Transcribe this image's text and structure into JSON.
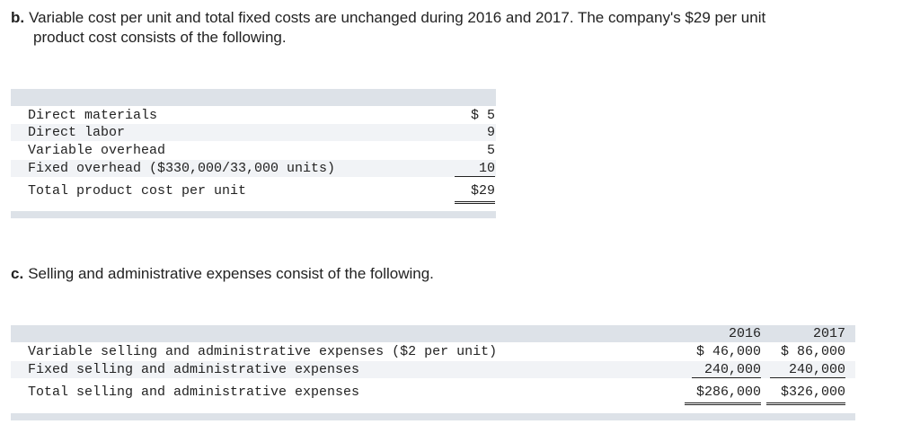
{
  "part_b": {
    "label": "b.",
    "line1": "Variable cost per unit and total fixed costs are unchanged during 2016 and 2017. The company's $29 per unit",
    "line2": "product cost consists of the following."
  },
  "product_cost_table": {
    "rows": [
      {
        "label": "Direct materials",
        "amount": "$ 5"
      },
      {
        "label": "Direct labor",
        "amount": "9"
      },
      {
        "label": "Variable overhead",
        "amount": "5"
      },
      {
        "label": "Fixed overhead ($330,000/33,000 units)",
        "amount": "10"
      }
    ],
    "total": {
      "label": "Total product cost per unit",
      "amount": "$29"
    }
  },
  "part_c": {
    "label": "c.",
    "text": "Selling and administrative expenses consist of the following."
  },
  "selling_admin_table": {
    "headers": [
      "2016",
      "2017"
    ],
    "rows": [
      {
        "label": "Variable selling and administrative expenses ($2 per unit)",
        "y2016": "$ 46,000",
        "y2017": "$ 86,000"
      },
      {
        "label": "Fixed selling and administrative expenses",
        "y2016": "240,000",
        "y2017": "240,000"
      }
    ],
    "total": {
      "label": "Total selling and administrative expenses",
      "y2016": "$286,000",
      "y2017": "$326,000"
    }
  }
}
